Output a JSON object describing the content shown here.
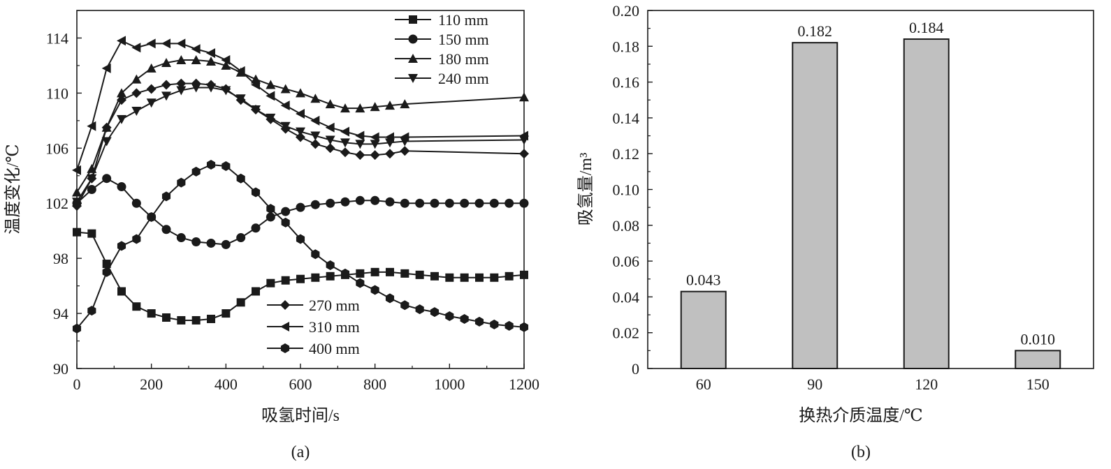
{
  "figure": {
    "panels": [
      "(a)",
      "(b)"
    ]
  },
  "chart_data": [
    {
      "type": "line",
      "panel_label": "(a)",
      "xlabel": "吸氢时间/s",
      "ylabel": "温度变化/℃",
      "xlim": [
        0,
        1200
      ],
      "ylim": [
        90,
        116
      ],
      "x_ticks": [
        0,
        200,
        400,
        600,
        800,
        1000,
        1200
      ],
      "y_ticks": [
        90,
        94,
        98,
        102,
        106,
        110,
        114
      ],
      "grid": false,
      "legend_groups": [
        {
          "placement": "top-right",
          "series": [
            "110 mm",
            "150 mm",
            "180 mm",
            "240 mm"
          ]
        },
        {
          "placement": "bottom-center",
          "series": [
            "270 mm",
            "310 mm",
            "400 mm"
          ]
        }
      ],
      "series": [
        {
          "name": "110 mm",
          "marker": "square",
          "x": [
            0,
            40,
            80,
            120,
            160,
            200,
            240,
            280,
            320,
            360,
            400,
            440,
            480,
            520,
            560,
            600,
            640,
            680,
            720,
            760,
            800,
            840,
            880,
            920,
            960,
            1000,
            1040,
            1080,
            1120,
            1160,
            1200
          ],
          "y": [
            99.9,
            99.8,
            97.6,
            95.6,
            94.5,
            94.0,
            93.7,
            93.5,
            93.5,
            93.6,
            94.0,
            94.8,
            95.6,
            96.2,
            96.4,
            96.5,
            96.6,
            96.7,
            96.8,
            96.9,
            97.0,
            97.0,
            96.9,
            96.8,
            96.7,
            96.6,
            96.6,
            96.6,
            96.6,
            96.7,
            96.8
          ]
        },
        {
          "name": "150 mm",
          "marker": "circle",
          "x": [
            0,
            40,
            80,
            120,
            160,
            200,
            240,
            280,
            320,
            360,
            400,
            440,
            480,
            520,
            560,
            600,
            640,
            680,
            720,
            760,
            800,
            840,
            880,
            920,
            960,
            1000,
            1040,
            1080,
            1120,
            1160,
            1200
          ],
          "y": [
            102.0,
            103.0,
            103.8,
            103.2,
            102.0,
            101.0,
            100.1,
            99.5,
            99.2,
            99.1,
            99.0,
            99.5,
            100.2,
            101.0,
            101.4,
            101.7,
            101.9,
            102.0,
            102.1,
            102.2,
            102.2,
            102.1,
            102.0,
            102.0,
            102.0,
            102.0,
            102.0,
            102.0,
            102.0,
            102.0,
            102.0
          ]
        },
        {
          "name": "180 mm",
          "marker": "triangle-up",
          "x": [
            0,
            40,
            80,
            120,
            160,
            200,
            240,
            280,
            320,
            360,
            400,
            440,
            480,
            520,
            560,
            600,
            640,
            680,
            720,
            760,
            800,
            840,
            880,
            1200
          ],
          "y": [
            102.8,
            104.5,
            107.5,
            110.0,
            111.0,
            111.8,
            112.2,
            112.4,
            112.4,
            112.3,
            112.0,
            111.5,
            111.0,
            110.6,
            110.3,
            110.0,
            109.6,
            109.2,
            108.9,
            108.9,
            109.0,
            109.1,
            109.2,
            109.7
          ]
        },
        {
          "name": "240 mm",
          "marker": "triangle-down",
          "x": [
            0,
            40,
            80,
            120,
            160,
            200,
            240,
            280,
            320,
            360,
            400,
            440,
            480,
            520,
            560,
            600,
            640,
            680,
            720,
            760,
            800,
            840,
            880,
            1200
          ],
          "y": [
            102.1,
            103.8,
            106.5,
            108.1,
            108.7,
            109.3,
            109.8,
            110.2,
            110.4,
            110.4,
            110.2,
            109.6,
            108.8,
            108.2,
            107.6,
            107.2,
            106.9,
            106.6,
            106.4,
            106.3,
            106.3,
            106.4,
            106.5,
            106.6
          ]
        },
        {
          "name": "270 mm",
          "marker": "diamond",
          "x": [
            0,
            40,
            80,
            120,
            160,
            200,
            240,
            280,
            320,
            360,
            400,
            440,
            480,
            520,
            560,
            600,
            640,
            680,
            720,
            760,
            800,
            840,
            880,
            1200
          ],
          "y": [
            101.8,
            103.8,
            107.5,
            109.5,
            110.0,
            110.3,
            110.6,
            110.7,
            110.7,
            110.6,
            110.3,
            109.5,
            108.8,
            108.1,
            107.4,
            106.8,
            106.3,
            106.0,
            105.7,
            105.5,
            105.5,
            105.6,
            105.8,
            105.6
          ]
        },
        {
          "name": "310 mm",
          "marker": "triangle-left",
          "x": [
            0,
            40,
            80,
            120,
            160,
            200,
            240,
            280,
            320,
            360,
            400,
            440,
            480,
            520,
            560,
            600,
            640,
            680,
            720,
            760,
            800,
            840,
            880,
            1200
          ],
          "y": [
            104.4,
            107.6,
            111.8,
            113.8,
            113.3,
            113.6,
            113.6,
            113.6,
            113.2,
            112.9,
            112.4,
            111.6,
            110.6,
            109.8,
            109.1,
            108.5,
            108.0,
            107.5,
            107.2,
            106.9,
            106.8,
            106.8,
            106.8,
            106.9
          ]
        },
        {
          "name": "400 mm",
          "marker": "hexagon",
          "x": [
            0,
            40,
            80,
            120,
            160,
            200,
            240,
            280,
            320,
            360,
            400,
            440,
            480,
            520,
            560,
            600,
            640,
            680,
            720,
            760,
            800,
            840,
            880,
            920,
            960,
            1000,
            1040,
            1080,
            1120,
            1160,
            1200
          ],
          "y": [
            92.9,
            94.2,
            97.0,
            98.9,
            99.4,
            101.0,
            102.5,
            103.5,
            104.3,
            104.8,
            104.7,
            103.8,
            102.8,
            101.6,
            100.6,
            99.4,
            98.3,
            97.5,
            96.9,
            96.2,
            95.7,
            95.1,
            94.6,
            94.3,
            94.1,
            93.8,
            93.6,
            93.4,
            93.2,
            93.1,
            93.0
          ]
        }
      ]
    },
    {
      "type": "bar",
      "panel_label": "(b)",
      "xlabel": "换热介质温度/℃",
      "ylabel": "吸氢量/m³",
      "categories": [
        "60",
        "90",
        "120",
        "150"
      ],
      "values": [
        0.043,
        0.182,
        0.184,
        0.01
      ],
      "value_labels": [
        "0.043",
        "0.182",
        "0.184",
        "0.010"
      ],
      "ylim": [
        0,
        0.2
      ],
      "y_ticks": [
        0,
        0.02,
        0.04,
        0.06,
        0.08,
        0.1,
        0.12,
        0.14,
        0.16,
        0.18,
        0.2
      ],
      "y_tick_labels": [
        "0",
        "0.02",
        "0.04",
        "0.06",
        "0.08",
        "0.10",
        "0.12",
        "0.14",
        "0.16",
        "0.18",
        "0.20"
      ],
      "bar_color": "#c0c0c0",
      "grid": false
    }
  ]
}
